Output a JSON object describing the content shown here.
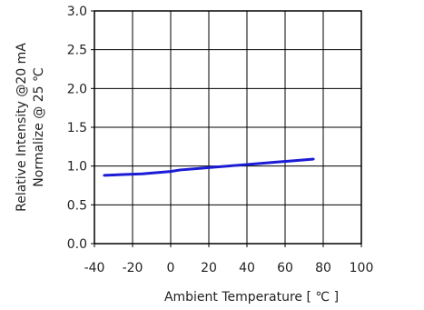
{
  "chart_data": {
    "type": "line",
    "title": "",
    "xlabel": "Ambient Temperature [ ℃ ]",
    "ylabel_lines": [
      "Relative Intensity @20 mA",
      "Normalize @ 25 ℃"
    ],
    "xlim": [
      -40,
      100
    ],
    "ylim": [
      0.0,
      3.0
    ],
    "xticks": [
      -40,
      -20,
      0,
      20,
      40,
      60,
      80,
      100
    ],
    "yticks": [
      0.0,
      0.5,
      1.0,
      1.5,
      2.0,
      2.5,
      3.0
    ],
    "xtick_labels": [
      "-40",
      "-20",
      "0",
      "20",
      "40",
      "60",
      "80",
      "100"
    ],
    "ytick_labels": [
      "0.0",
      "0.5",
      "1.0",
      "1.5",
      "2.0",
      "2.5",
      "3.0"
    ],
    "grid": true,
    "series": [
      {
        "color": "#1c1cd6",
        "x": [
          -35,
          -25,
          -15,
          -5,
          0,
          5,
          15,
          25,
          35,
          45,
          55,
          65,
          75
        ],
        "y": [
          0.88,
          0.89,
          0.9,
          0.92,
          0.93,
          0.95,
          0.97,
          0.99,
          1.01,
          1.03,
          1.05,
          1.07,
          1.09
        ]
      }
    ]
  }
}
